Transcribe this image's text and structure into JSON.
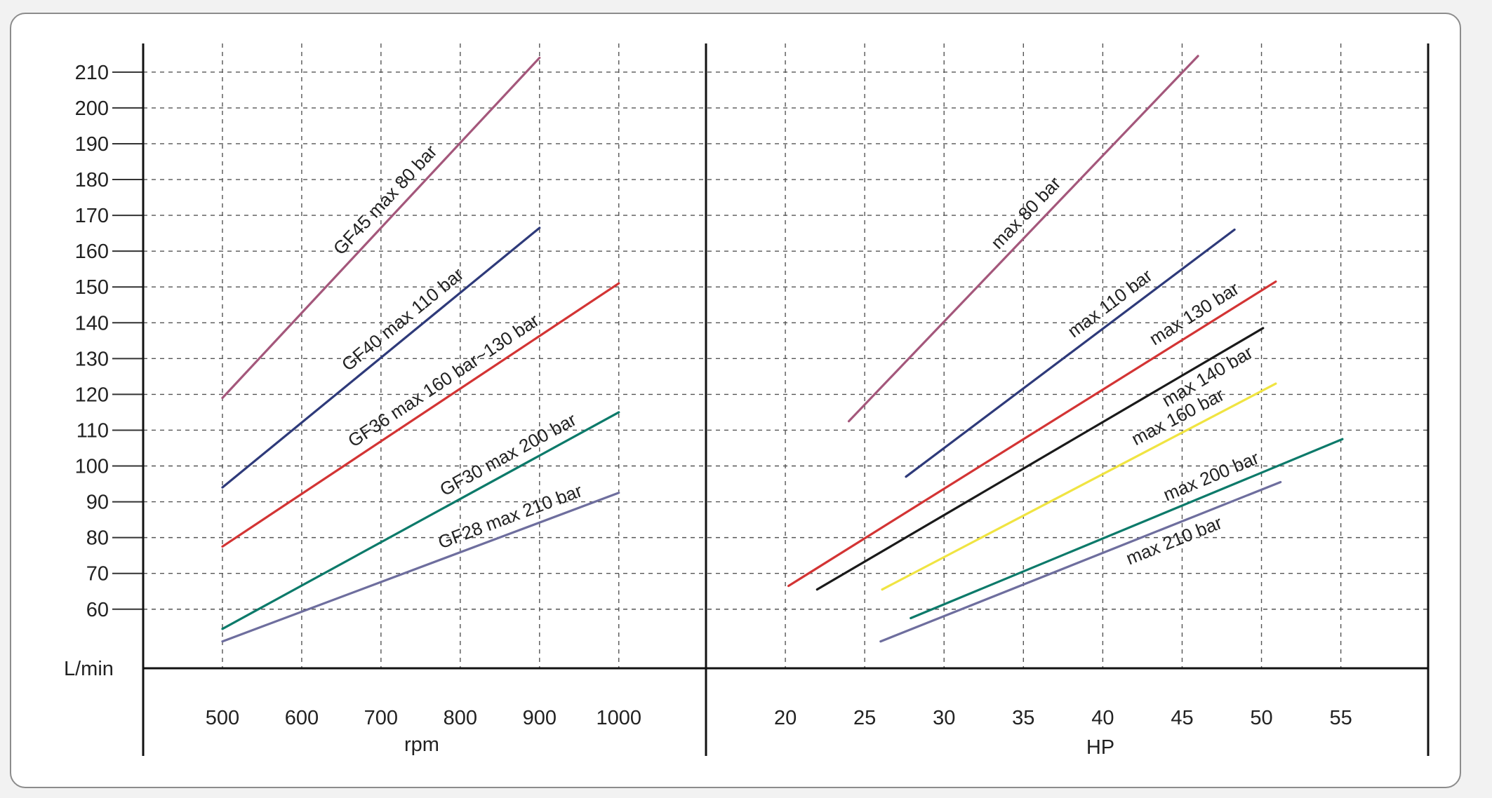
{
  "chart_data": {
    "type": "line",
    "y_axis": {
      "label": "L/min",
      "ticks": [
        60,
        70,
        80,
        90,
        100,
        110,
        120,
        130,
        140,
        150,
        160,
        170,
        180,
        190,
        200,
        210
      ],
      "range": [
        43.5,
        218
      ]
    },
    "panels": [
      {
        "x_axis": {
          "label": "rpm",
          "ticks": [
            500,
            600,
            700,
            800,
            900,
            1000
          ],
          "range": [
            400,
            1110
          ]
        },
        "grid": true,
        "series": [
          {
            "name": "GF45 max 80 bar",
            "color": "#a4577b",
            "points": [
              [
                500,
                119
              ],
              [
                900,
                214
              ]
            ]
          },
          {
            "name": "GF40 max 110 bar",
            "color": "#2e3a7a",
            "points": [
              [
                500,
                94
              ],
              [
                900,
                166.5
              ]
            ]
          },
          {
            "name": "GF36 max 160 bar~130 bar",
            "color": "#d33434",
            "points": [
              [
                500,
                77.5
              ],
              [
                1000,
                151
              ]
            ]
          },
          {
            "name": "GF30 max 200 bar",
            "color": "#0c7a6a",
            "points": [
              [
                500,
                54.5
              ],
              [
                1000,
                115
              ]
            ]
          },
          {
            "name": "GF28 max 210 bar",
            "color": "#6e6e9e",
            "points": [
              [
                500,
                51
              ],
              [
                1000,
                92.5
              ]
            ]
          }
        ]
      },
      {
        "x_axis": {
          "label": "HP",
          "ticks": [
            20,
            25,
            30,
            35,
            40,
            45,
            50,
            55
          ],
          "range": [
            15,
            60.5
          ]
        },
        "grid": true,
        "series": [
          {
            "name": "max 80 bar",
            "color": "#a4577b",
            "points": [
              [
                24,
                112.5
              ],
              [
                46,
                214.5
              ]
            ]
          },
          {
            "name": "max 110 bar",
            "color": "#2e3a7a",
            "points": [
              [
                27.6,
                97
              ],
              [
                48.3,
                166
              ]
            ]
          },
          {
            "name": "max 130 bar",
            "color": "#d33434",
            "points": [
              [
                20.2,
                66.5
              ],
              [
                50.9,
                151.5
              ]
            ]
          },
          {
            "name": "max 140 bar",
            "color": "#1a1a1a",
            "points": [
              [
                22,
                65.5
              ],
              [
                50.1,
                138.5
              ]
            ]
          },
          {
            "name": "max 160 bar",
            "color": "#f0e442",
            "points": [
              [
                26.1,
                65.5
              ],
              [
                50.9,
                123
              ]
            ]
          },
          {
            "name": "max 200 bar",
            "color": "#0c7a6a",
            "points": [
              [
                27.9,
                57.5
              ],
              [
                55.1,
                107.5
              ]
            ]
          },
          {
            "name": "max 210 bar",
            "color": "#6e6e9e",
            "points": [
              [
                26,
                51
              ],
              [
                51.2,
                95.5
              ]
            ]
          }
        ]
      }
    ]
  }
}
